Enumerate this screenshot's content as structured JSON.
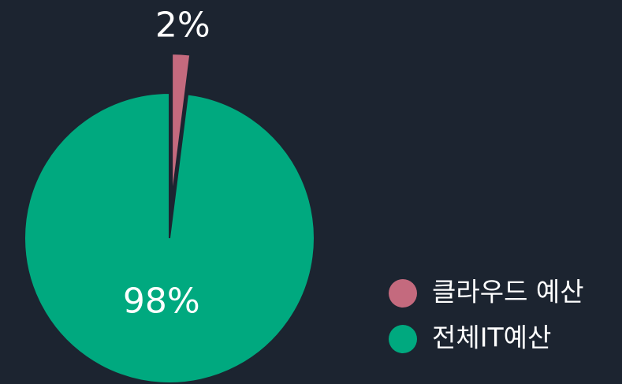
{
  "chart_data": {
    "type": "pie",
    "categories": [
      "클라우드 예산",
      "전체IT예산"
    ],
    "values": [
      2,
      98
    ],
    "value_labels": [
      "2%",
      "98%"
    ],
    "colors": [
      "#c46a7e",
      "#00a97f"
    ],
    "legend": "right"
  }
}
